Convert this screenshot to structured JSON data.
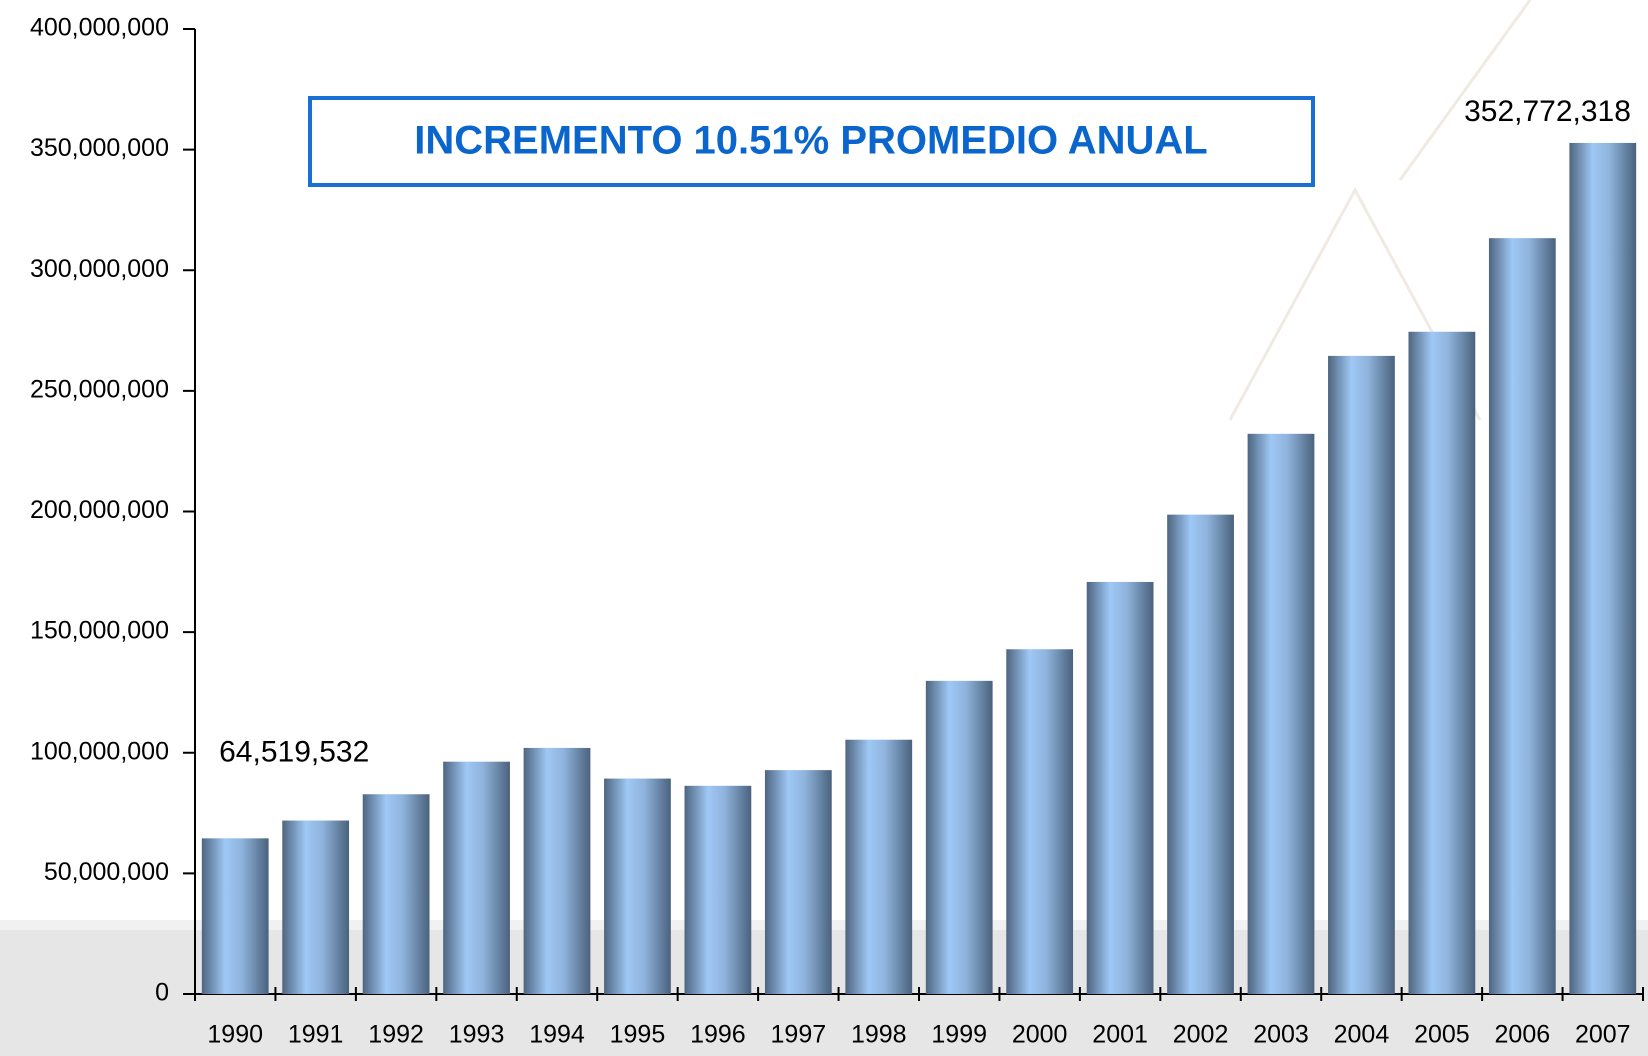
{
  "chart_data": {
    "type": "bar",
    "annotation": "INCREMENTO 10.51% PROMEDIO ANUAL",
    "categories": [
      "1990",
      "1991",
      "1992",
      "1993",
      "1994",
      "1995",
      "1996",
      "1997",
      "1998",
      "1999",
      "2000",
      "2001",
      "2002",
      "2003",
      "2004",
      "2005",
      "2006",
      "2007"
    ],
    "values": [
      64519532,
      71900000,
      82800000,
      96300000,
      102000000,
      89300000,
      86300000,
      92800000,
      105400000,
      129800000,
      142900000,
      170800000,
      198700000,
      232200000,
      264500000,
      274500000,
      313300000,
      352772318
    ],
    "value_labels": [
      "64,519,532",
      null,
      null,
      null,
      null,
      null,
      null,
      null,
      null,
      null,
      null,
      null,
      null,
      null,
      null,
      null,
      null,
      "352,772,318"
    ],
    "color": "#9fc8f5",
    "ylim": [
      0,
      400000000
    ],
    "yticks": [
      0,
      {
        "value": 50000000,
        "label": "50,000,000"
      },
      {
        "value": 100000000,
        "label": "100,000,000"
      },
      {
        "value": 150000000,
        "label": "150,000,000"
      },
      {
        "value": 200000000,
        "label": "200,000,000"
      },
      {
        "value": 250000000,
        "label": "250,000,000"
      },
      {
        "value": 300000000,
        "label": "300,000,000"
      },
      {
        "value": 350000000,
        "label": "350,000,000"
      },
      {
        "value": 400000000,
        "label": "400,000,000"
      }
    ],
    "grid": false
  }
}
